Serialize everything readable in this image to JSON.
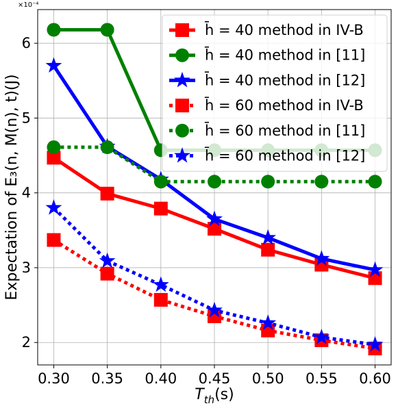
{
  "chart_data": {
    "type": "line",
    "title": "",
    "xlabel_main": "T",
    "xlabel_sub": "th",
    "xlabel_unit": "(s)",
    "ylabel": "Expectation of E₃(n, M(n), t)(J)",
    "y_exponent_label": "×10⁻⁴",
    "x": [
      0.3,
      0.35,
      0.4,
      0.45,
      0.5,
      0.55,
      0.6
    ],
    "x_tick_labels": [
      "0.30",
      "0.35",
      "0.40",
      "0.45",
      "0.50",
      "0.55",
      "0.60"
    ],
    "y_ticks": [
      2,
      3,
      4,
      5,
      6
    ],
    "y_tick_labels": [
      "2",
      "3",
      "4",
      "5",
      "6"
    ],
    "xlim": [
      0.285,
      0.615
    ],
    "ylim": [
      1.7,
      6.45
    ],
    "grid": true,
    "legend_placement": "top-right",
    "series": [
      {
        "name": "h̄ = 40 method in IV-B",
        "color": "#ff0000",
        "line": "solid",
        "marker": "square",
        "values": [
          4.47,
          3.99,
          3.79,
          3.52,
          3.24,
          3.04,
          2.86
        ]
      },
      {
        "name": "h̄ = 40 method in [11]",
        "color": "#008000",
        "line": "solid",
        "marker": "circle",
        "values": [
          6.18,
          6.18,
          4.57,
          4.57,
          4.57,
          4.57,
          4.57
        ]
      },
      {
        "name": "h̄ = 40 method in [12]",
        "color": "#0000ff",
        "line": "solid",
        "marker": "star",
        "values": [
          5.7,
          4.62,
          4.18,
          3.65,
          3.4,
          3.12,
          2.97
        ]
      },
      {
        "name": "h̄ = 60 method in IV-B",
        "color": "#ff0000",
        "line": "dotted",
        "marker": "square",
        "values": [
          3.37,
          2.92,
          2.57,
          2.35,
          2.16,
          2.03,
          1.92
        ]
      },
      {
        "name": "h̄ = 60 method in [11]",
        "color": "#008000",
        "line": "dotted",
        "marker": "circle",
        "values": [
          4.61,
          4.61,
          4.15,
          4.15,
          4.15,
          4.15,
          4.15
        ]
      },
      {
        "name": "h̄ = 60 method in [12]",
        "color": "#0000ff",
        "line": "dotted",
        "marker": "star",
        "values": [
          3.8,
          3.09,
          2.77,
          2.43,
          2.26,
          2.07,
          1.97
        ]
      }
    ]
  }
}
